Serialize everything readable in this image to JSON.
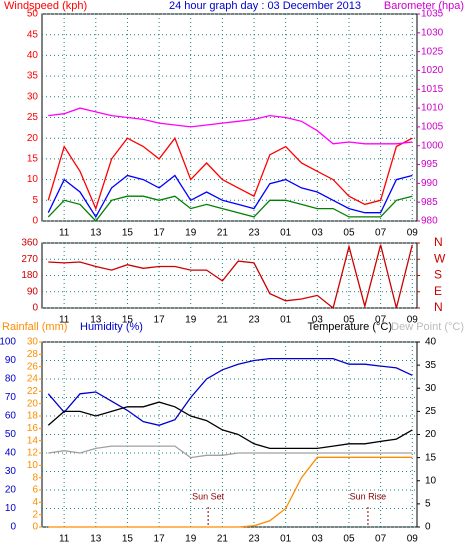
{
  "chart_data": [
    {
      "type": "line",
      "title": "24 hour graph day : 03 December 2013",
      "y_label": "Windspeed (kph)",
      "y2_label": "Barometer (hpa)",
      "x": [
        1,
        2,
        3,
        4,
        5,
        6,
        7,
        8,
        9,
        10,
        11,
        12,
        13,
        14,
        15,
        16,
        17,
        18,
        19,
        20,
        21,
        22,
        23,
        24
      ],
      "xlim": [
        0.6,
        24.3
      ],
      "xticks": [
        {
          "value": 2,
          "label": "11"
        },
        {
          "value": 4,
          "label": "13"
        },
        {
          "value": 6,
          "label": "15"
        },
        {
          "value": 8,
          "label": "17"
        },
        {
          "value": 10,
          "label": "19"
        },
        {
          "value": 12,
          "label": "21"
        },
        {
          "value": 14,
          "label": "23"
        },
        {
          "value": 16,
          "label": "01"
        },
        {
          "value": 18,
          "label": "03"
        },
        {
          "value": 20,
          "label": "05"
        },
        {
          "value": 22,
          "label": "07"
        },
        {
          "value": 24,
          "label": "09"
        }
      ],
      "ylim": [
        0,
        50
      ],
      "yticks": [
        0,
        5,
        10,
        15,
        20,
        25,
        30,
        35,
        40,
        45,
        50
      ],
      "y2lim": [
        980,
        1035
      ],
      "y2ticks": [
        980,
        985,
        990,
        995,
        1000,
        1005,
        1010,
        1015,
        1020,
        1025,
        1030,
        1035
      ],
      "grid": true,
      "series": [
        {
          "color": "#ff0000",
          "values": [
            5,
            18,
            12,
            3,
            15,
            20,
            18,
            15,
            20,
            10,
            14,
            10,
            8,
            6,
            16,
            18,
            14,
            12,
            10,
            6,
            4,
            5,
            18,
            20
          ]
        },
        {
          "color": "#0000ff",
          "values": [
            2,
            10,
            7,
            1,
            8,
            11,
            10,
            8,
            11,
            5,
            7,
            5,
            4,
            3,
            9,
            10,
            8,
            7,
            5,
            3,
            2,
            2,
            10,
            11
          ]
        },
        {
          "color": "#008000",
          "values": [
            1,
            5,
            4,
            0,
            5,
            6,
            6,
            5,
            6,
            3,
            4,
            3,
            2,
            1,
            5,
            5,
            4,
            3,
            3,
            1,
            1,
            1,
            5,
            6
          ]
        },
        {
          "color": "#ff00ff",
          "axis": "y2",
          "values": [
            1008,
            1008.5,
            1010,
            1009,
            1008,
            1007.5,
            1007,
            1006,
            1005.5,
            1005,
            1005.5,
            1006,
            1006.5,
            1007,
            1008,
            1007.5,
            1006.5,
            1004,
            1000.5,
            1001,
            1000.5,
            1000.5,
            1000.5,
            1001
          ]
        }
      ]
    },
    {
      "type": "line",
      "x": [
        1,
        2,
        3,
        4,
        5,
        6,
        7,
        8,
        9,
        10,
        11,
        12,
        13,
        14,
        15,
        16,
        17,
        18,
        19,
        20,
        21,
        22,
        23,
        24
      ],
      "xlim": [
        0.6,
        24.3
      ],
      "xticks": [
        {
          "value": 2,
          "label": "11"
        },
        {
          "value": 4,
          "label": "13"
        },
        {
          "value": 6,
          "label": "15"
        },
        {
          "value": 8,
          "label": "17"
        },
        {
          "value": 10,
          "label": "19"
        },
        {
          "value": 12,
          "label": "21"
        },
        {
          "value": 14,
          "label": "23"
        },
        {
          "value": 16,
          "label": "01"
        },
        {
          "value": 18,
          "label": "03"
        },
        {
          "value": 20,
          "label": "05"
        },
        {
          "value": 22,
          "label": "07"
        },
        {
          "value": 24,
          "label": "09"
        }
      ],
      "ylim": [
        0,
        360
      ],
      "yticks": [
        0,
        90,
        180,
        270,
        360
      ],
      "y2lim": [
        0,
        360
      ],
      "y2ticks": [
        {
          "value": 360,
          "label": "N"
        },
        {
          "value": 270,
          "label": "W"
        },
        {
          "value": 180,
          "label": "S"
        },
        {
          "value": 90,
          "label": "E"
        },
        {
          "value": 0,
          "label": "N"
        }
      ],
      "grid": true,
      "series": [
        {
          "color": "#cc0000",
          "values": [
            255,
            250,
            255,
            230,
            210,
            240,
            220,
            230,
            230,
            210,
            210,
            150,
            260,
            250,
            80,
            40,
            50,
            70,
            0,
            340,
            10,
            350,
            0,
            350
          ]
        }
      ]
    },
    {
      "type": "line",
      "y3_label": "Rainfall (mm)",
      "y_label": "Humidity (%)",
      "y2_labels": [
        "Temperature (°C)",
        "Dew Point (°C)"
      ],
      "x": [
        1,
        2,
        3,
        4,
        5,
        6,
        7,
        8,
        9,
        10,
        11,
        12,
        13,
        14,
        15,
        16,
        17,
        18,
        19,
        20,
        21,
        22,
        23,
        24
      ],
      "xlim": [
        0.6,
        24.3
      ],
      "xticks": [
        {
          "value": 2,
          "label": "11"
        },
        {
          "value": 4,
          "label": "13"
        },
        {
          "value": 6,
          "label": "15"
        },
        {
          "value": 8,
          "label": "17"
        },
        {
          "value": 10,
          "label": "19"
        },
        {
          "value": 12,
          "label": "21"
        },
        {
          "value": 14,
          "label": "23"
        },
        {
          "value": 16,
          "label": "01"
        },
        {
          "value": 18,
          "label": "03"
        },
        {
          "value": 20,
          "label": "05"
        },
        {
          "value": 22,
          "label": "07"
        },
        {
          "value": 24,
          "label": "09"
        }
      ],
      "ylim": [
        0,
        100
      ],
      "yticks": [
        0,
        10,
        20,
        30,
        40,
        50,
        60,
        70,
        80,
        90,
        100
      ],
      "y3lim": [
        0,
        30
      ],
      "y3ticks": [
        0,
        2,
        4,
        6,
        8,
        10,
        12,
        14,
        16,
        18,
        20,
        22,
        24,
        26,
        28,
        30
      ],
      "y2lim": [
        0,
        40
      ],
      "y2ticks": [
        0,
        5,
        10,
        15,
        20,
        25,
        30,
        35,
        40
      ],
      "grid": true,
      "annotations": [
        {
          "text": "Sun Set",
          "x": 11.1
        },
        {
          "text": "Sun Rise",
          "x": 21.2
        }
      ],
      "series": [
        {
          "color": "#0000cc",
          "values": [
            72,
            62,
            72,
            73,
            68,
            63,
            57,
            55,
            58,
            70,
            80,
            85,
            88,
            90,
            91,
            91,
            91,
            91,
            91,
            88,
            88,
            87,
            86,
            82
          ]
        },
        {
          "color": "#000000",
          "axis": "y2",
          "values": [
            22,
            25,
            25,
            24,
            25,
            26,
            26,
            27,
            26,
            24,
            23,
            21,
            20,
            18,
            17,
            17,
            17,
            17,
            17.5,
            18,
            18,
            18.5,
            19,
            21
          ]
        },
        {
          "color": "#a0a0a0",
          "axis": "y2",
          "values": [
            16,
            16.5,
            16,
            17,
            17.5,
            17.5,
            17.5,
            17.5,
            17.5,
            15,
            15.5,
            15.5,
            16,
            16,
            16,
            16,
            16,
            16,
            16,
            16,
            16,
            16,
            16,
            16
          ]
        },
        {
          "color": "#ff8c00",
          "axis": "y3",
          "values": [
            0,
            0,
            0,
            0,
            0,
            0,
            0,
            0,
            0,
            0,
            0,
            0,
            0,
            0.2,
            1,
            3,
            8,
            11.3,
            11.3,
            11.3,
            11.3,
            11.3,
            11.3,
            11.3
          ]
        }
      ]
    }
  ]
}
